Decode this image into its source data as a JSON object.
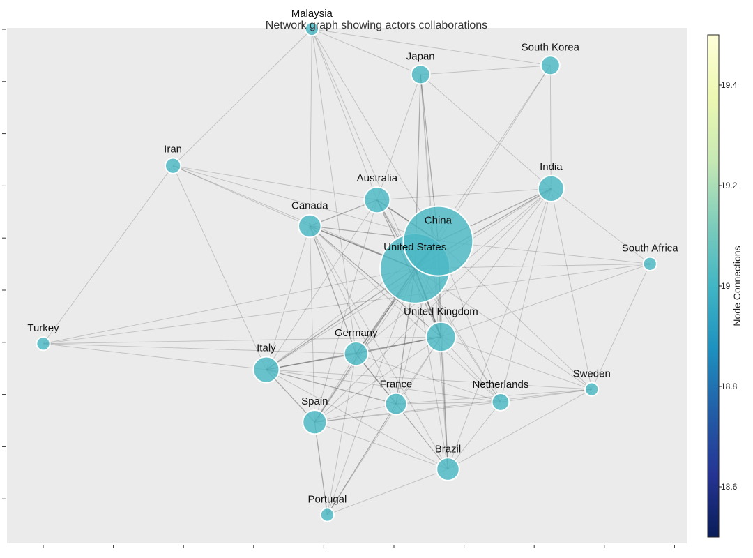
{
  "chart_data": {
    "type": "network",
    "title": "Network graph showing actors collaborations",
    "colorbar": {
      "label": "Node Connections",
      "ticks": [
        "18.6",
        "18.8",
        "19",
        "19.2",
        "19.4"
      ],
      "range": [
        18.5,
        19.5
      ],
      "colormap": "YlGnBu",
      "colormap_stops": [
        "#081d58",
        "#253494",
        "#225ea8",
        "#1d91c0",
        "#41b6c4",
        "#7fcdbb",
        "#c7e9b4",
        "#edf8b1",
        "#ffffd9"
      ]
    },
    "node_color": "#4bb8c4",
    "node_connections": 19,
    "plot_background": "#ebebeb",
    "nodes": [
      {
        "name": "United States",
        "size": 100,
        "x": 5.3,
        "y": 4.85
      },
      {
        "name": "China",
        "size": 100,
        "x": 5.63,
        "y": 5.45
      },
      {
        "name": "United Kingdom",
        "size": 15,
        "x": 5.67,
        "y": 3.35
      },
      {
        "name": "Australia",
        "size": 11,
        "x": 4.76,
        "y": 6.35
      },
      {
        "name": "India",
        "size": 11,
        "x": 7.24,
        "y": 6.6
      },
      {
        "name": "Italy",
        "size": 11,
        "x": 3.18,
        "y": 2.63
      },
      {
        "name": "Germany",
        "size": 9,
        "x": 4.46,
        "y": 2.98
      },
      {
        "name": "Spain",
        "size": 9,
        "x": 3.87,
        "y": 1.48
      },
      {
        "name": "Brazil",
        "size": 8,
        "x": 5.77,
        "y": 0.45
      },
      {
        "name": "Canada",
        "size": 8,
        "x": 3.8,
        "y": 5.78
      },
      {
        "name": "France",
        "size": 7,
        "x": 5.03,
        "y": 1.88
      },
      {
        "name": "Japan",
        "size": 5,
        "x": 5.38,
        "y": 9.1
      },
      {
        "name": "South Korea",
        "size": 5,
        "x": 7.23,
        "y": 9.3
      },
      {
        "name": "Netherlands",
        "size": 4,
        "x": 6.52,
        "y": 1.92
      },
      {
        "name": "Iran",
        "size": 3,
        "x": 1.85,
        "y": 7.1
      },
      {
        "name": "Malaysia",
        "size": 2,
        "x": 3.83,
        "y": 10.1
      },
      {
        "name": "Sweden",
        "size": 2,
        "x": 7.82,
        "y": 2.2
      },
      {
        "name": "South Africa",
        "size": 2,
        "x": 8.65,
        "y": 4.95
      },
      {
        "name": "Turkey",
        "size": 2,
        "x": 0.0,
        "y": 3.2
      },
      {
        "name": "Portugal",
        "size": 2,
        "x": 4.05,
        "y": -0.55
      }
    ],
    "edges": [
      [
        "United States",
        "China",
        6
      ],
      [
        "United States",
        "United Kingdom",
        4
      ],
      [
        "United States",
        "Canada",
        3
      ],
      [
        "United States",
        "Australia",
        2
      ],
      [
        "United States",
        "Germany",
        2
      ],
      [
        "United States",
        "France",
        2
      ],
      [
        "United States",
        "Italy",
        2
      ],
      [
        "United States",
        "Japan",
        2
      ],
      [
        "United States",
        "India",
        2
      ],
      [
        "United States",
        "Spain",
        2
      ],
      [
        "United States",
        "Brazil",
        1
      ],
      [
        "United States",
        "South Korea",
        1
      ],
      [
        "United States",
        "Netherlands",
        1
      ],
      [
        "United States",
        "Iran",
        1
      ],
      [
        "United States",
        "Malaysia",
        1
      ],
      [
        "United States",
        "Sweden",
        1
      ],
      [
        "United States",
        "South Africa",
        1
      ],
      [
        "United States",
        "Turkey",
        1
      ],
      [
        "United States",
        "Portugal",
        1
      ],
      [
        "China",
        "Australia",
        3
      ],
      [
        "China",
        "Canada",
        2
      ],
      [
        "China",
        "United Kingdom",
        2
      ],
      [
        "China",
        "India",
        2
      ],
      [
        "China",
        "Japan",
        2
      ],
      [
        "China",
        "Germany",
        2
      ],
      [
        "China",
        "Italy",
        1
      ],
      [
        "China",
        "South Korea",
        1
      ],
      [
        "China",
        "Malaysia",
        1
      ],
      [
        "China",
        "France",
        1
      ],
      [
        "China",
        "Brazil",
        1
      ],
      [
        "China",
        "Spain",
        1
      ],
      [
        "China",
        "Iran",
        1
      ],
      [
        "China",
        "Sweden",
        1
      ],
      [
        "China",
        "South Africa",
        1
      ],
      [
        "China",
        "Netherlands",
        1
      ],
      [
        "United Kingdom",
        "Canada",
        2
      ],
      [
        "United Kingdom",
        "Australia",
        2
      ],
      [
        "United Kingdom",
        "Germany",
        2
      ],
      [
        "United Kingdom",
        "Italy",
        2
      ],
      [
        "United Kingdom",
        "Spain",
        1
      ],
      [
        "United Kingdom",
        "France",
        1
      ],
      [
        "United Kingdom",
        "India",
        1
      ],
      [
        "United Kingdom",
        "South Africa",
        1
      ],
      [
        "United Kingdom",
        "Sweden",
        1
      ],
      [
        "United Kingdom",
        "Netherlands",
        1
      ],
      [
        "United Kingdom",
        "Brazil",
        2
      ],
      [
        "United Kingdom",
        "Japan",
        1
      ],
      [
        "United Kingdom",
        "Turkey",
        1
      ],
      [
        "United Kingdom",
        "Portugal",
        1
      ],
      [
        "Australia",
        "Canada",
        2
      ],
      [
        "Australia",
        "Iran",
        1
      ],
      [
        "Australia",
        "Japan",
        1
      ],
      [
        "Australia",
        "Malaysia",
        1
      ],
      [
        "Australia",
        "Italy",
        1
      ],
      [
        "Australia",
        "India",
        1
      ],
      [
        "Australia",
        "Spain",
        1
      ],
      [
        "Australia",
        "Netherlands",
        1
      ],
      [
        "Canada",
        "Iran",
        1
      ],
      [
        "Canada",
        "Italy",
        1
      ],
      [
        "Canada",
        "Germany",
        2
      ],
      [
        "Canada",
        "France",
        1
      ],
      [
        "Canada",
        "Brazil",
        1
      ],
      [
        "Canada",
        "Netherlands",
        1
      ],
      [
        "Canada",
        "Spain",
        1
      ],
      [
        "Canada",
        "Malaysia",
        1
      ],
      [
        "Italy",
        "Germany",
        2
      ],
      [
        "Italy",
        "Spain",
        2
      ],
      [
        "Italy",
        "France",
        2
      ],
      [
        "Italy",
        "Brazil",
        1
      ],
      [
        "Italy",
        "Iran",
        1
      ],
      [
        "Italy",
        "Turkey",
        1
      ],
      [
        "Italy",
        "Netherlands",
        1
      ],
      [
        "Italy",
        "Sweden",
        1
      ],
      [
        "Italy",
        "India",
        1
      ],
      [
        "Germany",
        "France",
        2
      ],
      [
        "Germany",
        "Spain",
        1
      ],
      [
        "Germany",
        "Brazil",
        1
      ],
      [
        "Germany",
        "India",
        1
      ],
      [
        "Germany",
        "Netherlands",
        1
      ],
      [
        "Germany",
        "Malaysia",
        1
      ],
      [
        "Germany",
        "Turkey",
        1
      ],
      [
        "Germany",
        "Portugal",
        1
      ],
      [
        "Spain",
        "France",
        1
      ],
      [
        "Spain",
        "Brazil",
        1
      ],
      [
        "Spain",
        "Portugal",
        2
      ],
      [
        "Spain",
        "India",
        1
      ],
      [
        "Spain",
        "Netherlands",
        1
      ],
      [
        "Spain",
        "Sweden",
        1
      ],
      [
        "France",
        "Brazil",
        1
      ],
      [
        "France",
        "Netherlands",
        1
      ],
      [
        "France",
        "Sweden",
        1
      ],
      [
        "France",
        "Portugal",
        1
      ],
      [
        "Brazil",
        "Portugal",
        1
      ],
      [
        "Brazil",
        "Netherlands",
        1
      ],
      [
        "Brazil",
        "Sweden",
        1
      ],
      [
        "Brazil",
        "India",
        1
      ],
      [
        "India",
        "South Korea",
        1
      ],
      [
        "India",
        "South Africa",
        1
      ],
      [
        "India",
        "Sweden",
        1
      ],
      [
        "India",
        "Netherlands",
        1
      ],
      [
        "Japan",
        "South Korea",
        1
      ],
      [
        "Japan",
        "Malaysia",
        1
      ],
      [
        "Japan",
        "India",
        1
      ],
      [
        "Japan",
        "Brazil",
        1
      ],
      [
        "Malaysia",
        "Iran",
        1
      ],
      [
        "Malaysia",
        "South Korea",
        1
      ],
      [
        "Netherlands",
        "Sweden",
        1
      ],
      [
        "South Africa",
        "Sweden",
        1
      ],
      [
        "Turkey",
        "Iran",
        1
      ],
      [
        "Turkey",
        "South Africa",
        1
      ],
      [
        "Portugal",
        "France",
        1
      ]
    ]
  }
}
